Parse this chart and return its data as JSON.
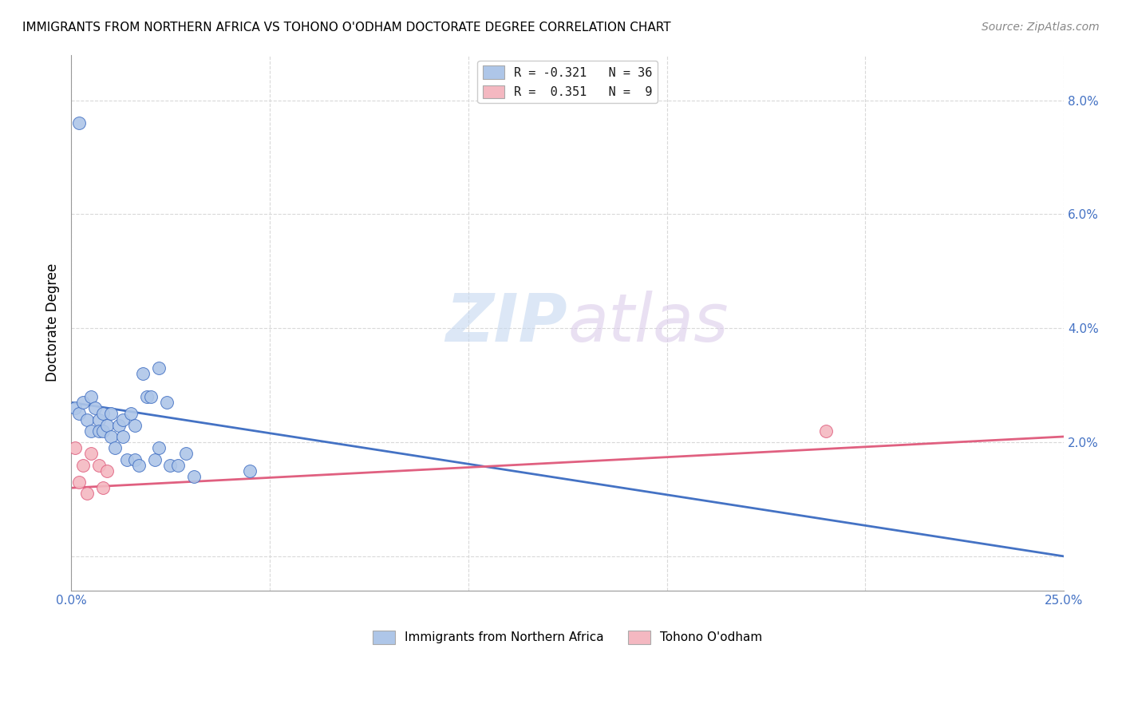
{
  "title": "IMMIGRANTS FROM NORTHERN AFRICA VS TOHONO O'ODHAM DOCTORATE DEGREE CORRELATION CHART",
  "source": "Source: ZipAtlas.com",
  "ylabel": "Doctorate Degree",
  "y_ticks": [
    0.0,
    0.02,
    0.04,
    0.06,
    0.08
  ],
  "y_tick_labels": [
    "",
    "2.0%",
    "4.0%",
    "6.0%",
    "8.0%"
  ],
  "x_min": 0.0,
  "x_max": 0.25,
  "y_min": -0.006,
  "y_max": 0.088,
  "legend_label_1": "R = -0.321   N = 36",
  "legend_label_2": "R =  0.351   N =  9",
  "bottom_legend_1": "Immigrants from Northern Africa",
  "bottom_legend_2": "Tohono O'odham",
  "blue_scatter_x": [
    0.001,
    0.002,
    0.002,
    0.003,
    0.004,
    0.005,
    0.005,
    0.006,
    0.007,
    0.007,
    0.008,
    0.008,
    0.009,
    0.01,
    0.01,
    0.011,
    0.012,
    0.013,
    0.013,
    0.014,
    0.015,
    0.016,
    0.016,
    0.017,
    0.018,
    0.019,
    0.02,
    0.021,
    0.022,
    0.024,
    0.025,
    0.027,
    0.029,
    0.031,
    0.045,
    0.022
  ],
  "blue_scatter_y": [
    0.026,
    0.076,
    0.025,
    0.027,
    0.024,
    0.028,
    0.022,
    0.026,
    0.024,
    0.022,
    0.025,
    0.022,
    0.023,
    0.025,
    0.021,
    0.019,
    0.023,
    0.024,
    0.021,
    0.017,
    0.025,
    0.023,
    0.017,
    0.016,
    0.032,
    0.028,
    0.028,
    0.017,
    0.019,
    0.027,
    0.016,
    0.016,
    0.018,
    0.014,
    0.015,
    0.033
  ],
  "pink_scatter_x": [
    0.001,
    0.002,
    0.003,
    0.004,
    0.005,
    0.007,
    0.008,
    0.009,
    0.19
  ],
  "pink_scatter_y": [
    0.019,
    0.013,
    0.016,
    0.011,
    0.018,
    0.016,
    0.012,
    0.015,
    0.022
  ],
  "blue_line_x": [
    0.0,
    0.25
  ],
  "blue_line_y": [
    0.027,
    0.0
  ],
  "pink_line_x": [
    0.0,
    0.25
  ],
  "pink_line_y": [
    0.012,
    0.021
  ],
  "scatter_color_blue": "#aec6e8",
  "scatter_color_pink": "#f4b8c1",
  "line_color_blue": "#4472c4",
  "line_color_pink": "#e06080",
  "watermark_zip": "ZIP",
  "watermark_atlas": "atlas",
  "background_color": "#ffffff",
  "grid_color": "#d9d9d9"
}
